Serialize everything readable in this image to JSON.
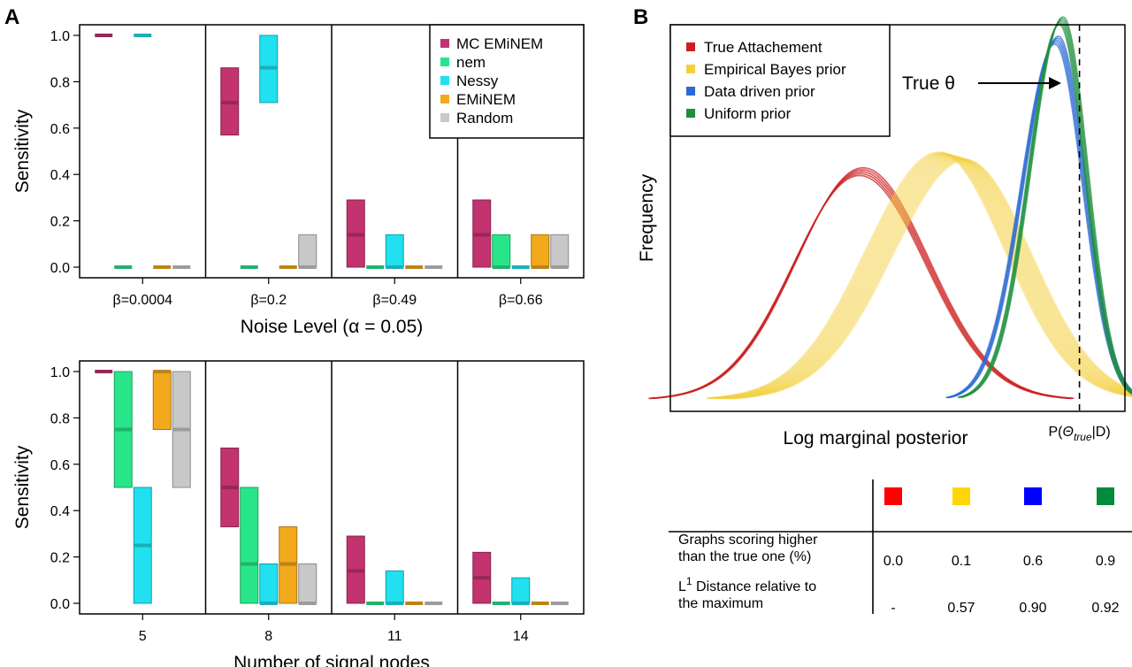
{
  "panel_labels": [
    "A",
    "B"
  ],
  "colors": {
    "MC EMiNEM": "#c2336f",
    "nem": "#29e589",
    "Nessy": "#21e0ef",
    "EMiNEM": "#f2a91c",
    "Random": "#c8c8c8"
  },
  "chart_data": [
    {
      "type": "bar",
      "subtype": "range-box",
      "ylabel": "Sensitivity",
      "xlabel": "Noise Level (α = 0.05)",
      "ylim": [
        0,
        1
      ],
      "yticks": [
        "0.0",
        "0.2",
        "0.4",
        "0.6",
        "0.8",
        "1.0"
      ],
      "categories": [
        "β=0.0004",
        "β=0.2",
        "β=0.49",
        "β=0.66"
      ],
      "legend": [
        "MC EMiNEM",
        "nem",
        "Nessy",
        "EMiNEM",
        "Random"
      ],
      "legend_position": "top-right",
      "series": [
        {
          "name": "MC EMiNEM",
          "ranges": [
            [
              1.0,
              1.0,
              1.0
            ],
            [
              0.57,
              0.71,
              0.86
            ],
            [
              0.0,
              0.14,
              0.29
            ],
            [
              0.0,
              0.14,
              0.29
            ]
          ]
        },
        {
          "name": "nem",
          "ranges": [
            [
              0.0,
              0.0,
              0.0
            ],
            [
              0.0,
              0.0,
              0.0
            ],
            [
              0.0,
              0.0,
              0.0
            ],
            [
              0.0,
              0.0,
              0.14
            ]
          ]
        },
        {
          "name": "Nessy",
          "ranges": [
            [
              1.0,
              1.0,
              1.0
            ],
            [
              0.71,
              0.86,
              1.0
            ],
            [
              0.0,
              0.0,
              0.14
            ],
            [
              0.0,
              0.0,
              0.0
            ]
          ]
        },
        {
          "name": "EMiNEM",
          "ranges": [
            [
              0.0,
              0.0,
              0.0
            ],
            [
              0.0,
              0.0,
              0.0
            ],
            [
              0.0,
              0.0,
              0.0
            ],
            [
              0.0,
              0.0,
              0.14
            ]
          ]
        },
        {
          "name": "Random",
          "ranges": [
            [
              0.0,
              0.0,
              0.0
            ],
            [
              0.0,
              0.0,
              0.14
            ],
            [
              0.0,
              0.0,
              0.0
            ],
            [
              0.0,
              0.0,
              0.14
            ]
          ]
        }
      ]
    },
    {
      "type": "bar",
      "subtype": "range-box",
      "ylabel": "Sensitivity",
      "xlabel": "Number of signal nodes",
      "ylim": [
        0,
        1
      ],
      "yticks": [
        "0.0",
        "0.2",
        "0.4",
        "0.6",
        "0.8",
        "1.0"
      ],
      "categories": [
        "5",
        "8",
        "11",
        "14"
      ],
      "series": [
        {
          "name": "MC EMiNEM",
          "ranges": [
            [
              1.0,
              1.0,
              1.0
            ],
            [
              0.33,
              0.5,
              0.67
            ],
            [
              0.0,
              0.14,
              0.29
            ],
            [
              0.0,
              0.11,
              0.22
            ]
          ]
        },
        {
          "name": "nem",
          "ranges": [
            [
              0.5,
              0.75,
              1.0
            ],
            [
              0.0,
              0.17,
              0.5
            ],
            [
              0.0,
              0.0,
              0.0
            ],
            [
              0.0,
              0.0,
              0.0
            ]
          ]
        },
        {
          "name": "Nessy",
          "ranges": [
            [
              0.0,
              0.25,
              0.5
            ],
            [
              0.0,
              0.0,
              0.17
            ],
            [
              0.0,
              0.0,
              0.14
            ],
            [
              0.0,
              0.0,
              0.11
            ]
          ]
        },
        {
          "name": "EMiNEM",
          "ranges": [
            [
              0.75,
              1.0,
              1.0
            ],
            [
              0.0,
              0.17,
              0.33
            ],
            [
              0.0,
              0.0,
              0.0
            ],
            [
              0.0,
              0.0,
              0.0
            ]
          ]
        },
        {
          "name": "Random",
          "ranges": [
            [
              0.5,
              0.75,
              1.0
            ],
            [
              0.0,
              0.0,
              0.17
            ],
            [
              0.0,
              0.0,
              0.0
            ],
            [
              0.0,
              0.0,
              0.0
            ]
          ]
        }
      ]
    },
    {
      "type": "area",
      "subtype": "density",
      "ylabel": "Frequency",
      "xlabel": "Log marginal posterior",
      "xlim": [
        0,
        1
      ],
      "ylim": [
        0,
        1
      ],
      "legend_position": "top-left",
      "true_marker": {
        "label": "P(Θ|D)",
        "x": 0.9,
        "annotation": "True θ"
      },
      "series": [
        {
          "name": "True Attachement",
          "color": "#cc1f1f",
          "peak_x": 0.42,
          "peak_y": 0.59
        },
        {
          "name": "Empirical Bayes prior",
          "color": "#f4d03f",
          "peak_x": 0.62,
          "peak_y": 0.63
        },
        {
          "name": "Data driven prior",
          "color": "#2c6ad3",
          "peak_x": 0.85,
          "peak_y": 0.93
        },
        {
          "name": "Uniform prior",
          "color": "#1e8f3c",
          "peak_x": 0.86,
          "peak_y": 0.98
        }
      ]
    },
    {
      "type": "table",
      "columns": [
        {
          "color": "#ff0000"
        },
        {
          "color": "#ffd700"
        },
        {
          "color": "#0000ff"
        },
        {
          "color": "#008c3a"
        }
      ],
      "rows": [
        {
          "label_lines": [
            "Graphs scoring higher",
            "than the true one (%)"
          ],
          "values": [
            "0.0",
            "0.1",
            "0.6",
            "0.9"
          ]
        },
        {
          "label_lines": [
            "Distance relative to",
            "the maximum"
          ],
          "label_prefix": "L",
          "label_sup": "1",
          "values": [
            "-",
            "0.57",
            "0.90",
            "0.92"
          ]
        }
      ]
    }
  ]
}
